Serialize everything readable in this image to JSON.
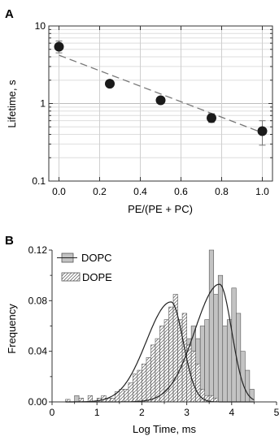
{
  "chart_data": [
    {
      "panel_label": "A",
      "type": "scatter",
      "xlabel": "PE/(PE + PC)",
      "ylabel": "Lifetime, s",
      "xlim": [
        -0.05,
        1.05
      ],
      "ylim": [
        0.1,
        10
      ],
      "yscale": "log",
      "grid": true,
      "xticks": [
        "0.0",
        "0.2",
        "0.4",
        "0.6",
        "0.8",
        "1.0"
      ],
      "yticks": [
        "0.1",
        "1",
        "10"
      ],
      "points": [
        {
          "x": 0.0,
          "y": 5.4,
          "err_low": 4.5,
          "err_high": 6.4
        },
        {
          "x": 0.25,
          "y": 1.8
        },
        {
          "x": 0.5,
          "y": 1.1
        },
        {
          "x": 0.75,
          "y": 0.65,
          "err_low": 0.57,
          "err_high": 0.74
        },
        {
          "x": 1.0,
          "y": 0.44,
          "err_low": 0.29,
          "err_high": 0.6
        }
      ],
      "fit_line": {
        "style": "dashed",
        "x": [
          0.0,
          1.0
        ],
        "y": [
          4.2,
          0.42
        ]
      }
    },
    {
      "panel_label": "B",
      "type": "bar",
      "xlabel": "Log Time, ms",
      "ylabel": "Frequency",
      "xlim": [
        0,
        5
      ],
      "ylim": [
        0,
        0.12
      ],
      "xticks": [
        "0",
        "1",
        "2",
        "3",
        "4",
        "5"
      ],
      "yticks": [
        "0.00",
        "0.04",
        "0.08",
        "0.12"
      ],
      "legend": {
        "placement": "top-left",
        "entries": [
          "DOPC",
          "DOPE"
        ]
      },
      "bin_width": 0.1,
      "series": [
        {
          "name": "DOPC",
          "fill": "gray",
          "bin_starts": [
            0.4,
            0.5,
            0.6,
            0.7,
            0.8,
            0.9,
            1.0,
            1.1,
            1.2,
            1.3,
            1.4,
            1.5,
            1.6,
            1.7,
            1.8,
            1.9,
            2.0,
            2.1,
            2.2,
            2.3,
            2.4,
            2.5,
            2.6,
            2.7,
            2.8,
            2.9,
            3.0,
            3.1,
            3.2,
            3.3,
            3.4,
            3.5,
            3.6,
            3.7,
            3.8,
            3.9,
            4.0,
            4.1,
            4.2,
            4.3,
            4.4,
            4.5
          ],
          "values": [
            0.0,
            0.005,
            0.0,
            0.0,
            0.0,
            0.0,
            0.0,
            0.0,
            0.0,
            0.0,
            0.0,
            0.0,
            0.0,
            0.0,
            0.0,
            0.0,
            0.005,
            0.005,
            0.0,
            0.0,
            0.005,
            0.005,
            0.01,
            0.02,
            0.025,
            0.035,
            0.05,
            0.06,
            0.05,
            0.06,
            0.065,
            0.12,
            0.085,
            0.1,
            0.06,
            0.065,
            0.09,
            0.07,
            0.04,
            0.025,
            0.01,
            0.0
          ]
        },
        {
          "name": "DOPE",
          "fill": "hatched",
          "bin_starts": [
            0.3,
            0.4,
            0.5,
            0.6,
            0.7,
            0.8,
            0.9,
            1.0,
            1.1,
            1.2,
            1.3,
            1.4,
            1.5,
            1.6,
            1.7,
            1.8,
            1.9,
            2.0,
            2.1,
            2.2,
            2.3,
            2.4,
            2.5,
            2.6,
            2.7,
            2.8,
            2.9,
            3.0,
            3.1,
            3.2,
            3.3,
            3.4,
            3.5,
            3.6
          ],
          "values": [
            0.002,
            0.0,
            0.0,
            0.003,
            0.0,
            0.005,
            0.0,
            0.003,
            0.005,
            0.003,
            0.003,
            0.008,
            0.01,
            0.01,
            0.015,
            0.022,
            0.025,
            0.03,
            0.035,
            0.045,
            0.05,
            0.06,
            0.065,
            0.075,
            0.085,
            0.065,
            0.07,
            0.045,
            0.04,
            0.03,
            0.01,
            0.005,
            0.005,
            0.003
          ]
        }
      ],
      "fit_curves": [
        {
          "name": "DOPC",
          "peak_x": 3.73,
          "peak_y": 0.093,
          "left_width": 0.55,
          "right_width": 0.27
        },
        {
          "name": "DOPE",
          "peak_x": 2.65,
          "peak_y": 0.079,
          "left_width": 0.55,
          "right_width": 0.27
        }
      ]
    }
  ]
}
